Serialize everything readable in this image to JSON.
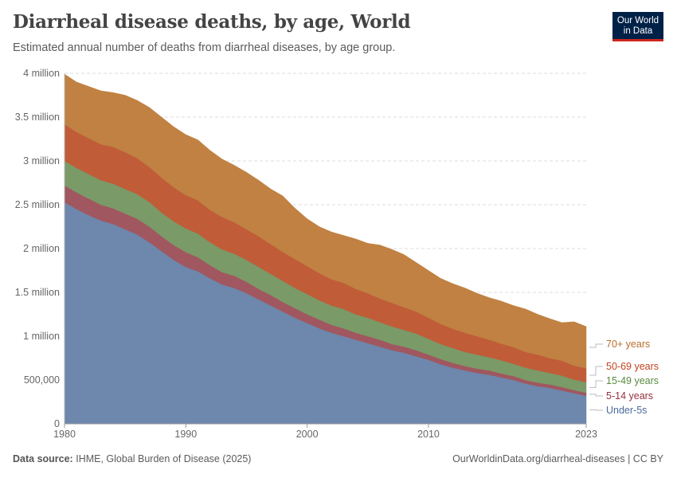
{
  "header": {
    "title": "Diarrheal disease deaths, by age, World",
    "subtitle": "Estimated annual number of deaths from diarrheal diseases, by age group.",
    "logo": "Our World in Data"
  },
  "footer": {
    "source_label": "Data source:",
    "source": "IHME, Global Burden of Disease (2025)",
    "url": "OurWorldinData.org/diarrheal-diseases | CC BY"
  },
  "chart_data": {
    "type": "area",
    "stacked": true,
    "title": "Diarrheal disease deaths, by age, World",
    "xlim": [
      1980,
      2023
    ],
    "ylim": [
      0,
      4000000
    ],
    "x_ticks": [
      "1980",
      "1990",
      "2000",
      "2010",
      "2023"
    ],
    "y_ticks": [
      {
        "value": 0,
        "label": "0"
      },
      {
        "value": 500000,
        "label": "500,000"
      },
      {
        "value": 1000000,
        "label": "1 million"
      },
      {
        "value": 1500000,
        "label": "1.5 million"
      },
      {
        "value": 2000000,
        "label": "2 million"
      },
      {
        "value": 2500000,
        "label": "2.5 million"
      },
      {
        "value": 3000000,
        "label": "3 million"
      },
      {
        "value": 3500000,
        "label": "3.5 million"
      },
      {
        "value": 4000000,
        "label": "4 million"
      }
    ],
    "grid": "horizontal dashed",
    "legend_placement": "right",
    "x": [
      1980,
      1981,
      1982,
      1983,
      1984,
      1985,
      1986,
      1987,
      1988,
      1989,
      1990,
      1991,
      1992,
      1993,
      1994,
      1995,
      1996,
      1997,
      1998,
      1999,
      2000,
      2001,
      2002,
      2003,
      2004,
      2005,
      2006,
      2007,
      2008,
      2009,
      2010,
      2011,
      2012,
      2013,
      2014,
      2015,
      2016,
      2017,
      2018,
      2019,
      2020,
      2021,
      2022,
      2023
    ],
    "series": [
      {
        "name": "Under-5s",
        "color": "#6D87AD",
        "label_color": "#4C6A9C",
        "values": [
          2530000,
          2450000,
          2380000,
          2320000,
          2280000,
          2220000,
          2160000,
          2070000,
          1970000,
          1870000,
          1790000,
          1740000,
          1660000,
          1590000,
          1550000,
          1490000,
          1420000,
          1350000,
          1280000,
          1210000,
          1150000,
          1090000,
          1040000,
          1000000,
          960000,
          920000,
          880000,
          840000,
          810000,
          770000,
          730000,
          680000,
          640000,
          610000,
          580000,
          560000,
          530000,
          500000,
          460000,
          430000,
          410000,
          380000,
          350000,
          320000
        ]
      },
      {
        "name": "5-14 years",
        "color": "#A0575F",
        "label_color": "#973040",
        "values": [
          190000,
          190000,
          190000,
          180000,
          180000,
          180000,
          180000,
          180000,
          170000,
          170000,
          170000,
          160000,
          150000,
          140000,
          140000,
          130000,
          120000,
          120000,
          110000,
          110000,
          100000,
          100000,
          90000,
          90000,
          80000,
          80000,
          80000,
          70000,
          70000,
          70000,
          60000,
          60000,
          55000,
          50000,
          50000,
          50000,
          45000,
          45000,
          40000,
          40000,
          40000,
          40000,
          35000,
          35000
        ]
      },
      {
        "name": "15-49 years",
        "color": "#7A9A68",
        "label_color": "#578A3E",
        "values": [
          280000,
          280000,
          280000,
          280000,
          280000,
          280000,
          280000,
          280000,
          270000,
          270000,
          270000,
          270000,
          260000,
          260000,
          250000,
          250000,
          250000,
          240000,
          240000,
          230000,
          230000,
          220000,
          220000,
          220000,
          210000,
          210000,
          200000,
          200000,
          190000,
          190000,
          180000,
          170000,
          170000,
          160000,
          160000,
          150000,
          150000,
          140000,
          140000,
          140000,
          130000,
          130000,
          120000,
          120000
        ]
      },
      {
        "name": "50-69 years",
        "color": "#C05C38",
        "label_color": "#C0431E",
        "values": [
          420000,
          410000,
          410000,
          410000,
          420000,
          420000,
          410000,
          400000,
          400000,
          390000,
          380000,
          380000,
          370000,
          370000,
          360000,
          350000,
          350000,
          340000,
          330000,
          330000,
          320000,
          310000,
          300000,
          300000,
          290000,
          280000,
          270000,
          270000,
          260000,
          250000,
          240000,
          230000,
          220000,
          220000,
          210000,
          200000,
          190000,
          190000,
          180000,
          180000,
          170000,
          170000,
          160000,
          160000
        ]
      },
      {
        "name": "70+ years",
        "color": "#C08142",
        "label_color": "#B8702C",
        "values": [
          570000,
          570000,
          590000,
          610000,
          620000,
          650000,
          660000,
          680000,
          690000,
          690000,
          690000,
          690000,
          680000,
          660000,
          650000,
          650000,
          640000,
          630000,
          640000,
          580000,
          540000,
          530000,
          540000,
          540000,
          570000,
          570000,
          610000,
          610000,
          600000,
          560000,
          540000,
          520000,
          515000,
          510000,
          490000,
          480000,
          485000,
          475000,
          490000,
          460000,
          450000,
          435000,
          500000,
          475000
        ]
      }
    ]
  }
}
